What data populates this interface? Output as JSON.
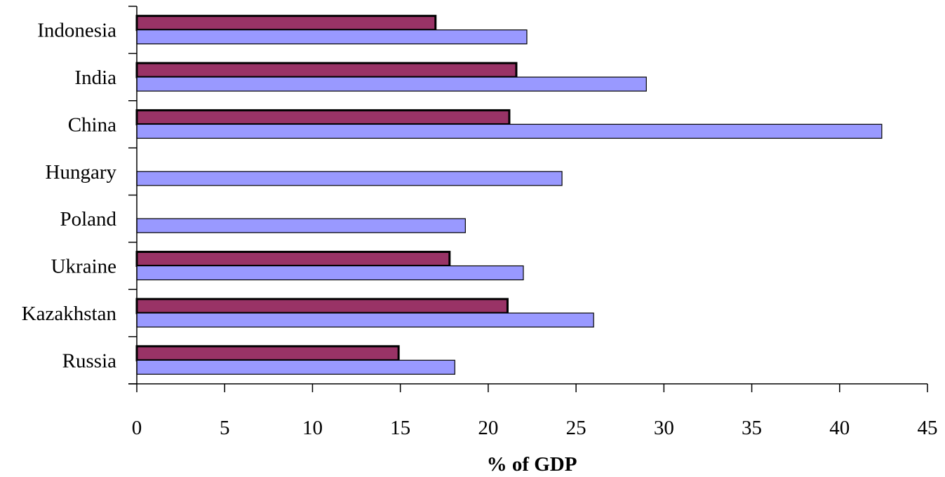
{
  "chart_data": {
    "type": "bar",
    "orientation": "horizontal",
    "categories": [
      "Indonesia",
      "India",
      "China",
      "Hungary",
      "Poland",
      "Ukraine",
      "Kazakhstan",
      "Russia"
    ],
    "series": [
      {
        "color": "#993366",
        "values": [
          17.0,
          21.6,
          21.2,
          null,
          null,
          17.8,
          21.1,
          14.9
        ]
      },
      {
        "color": "#9999FF",
        "values": [
          22.2,
          29.0,
          42.4,
          24.2,
          18.7,
          22.0,
          26.0,
          18.1
        ]
      }
    ],
    "xlabel": "% of GDP",
    "ylabel": "",
    "title": "",
    "xlim": [
      0,
      45
    ],
    "xticks": [
      0,
      5,
      10,
      15,
      20,
      25,
      30,
      35,
      40,
      45
    ],
    "grid": false,
    "legend": "none"
  }
}
